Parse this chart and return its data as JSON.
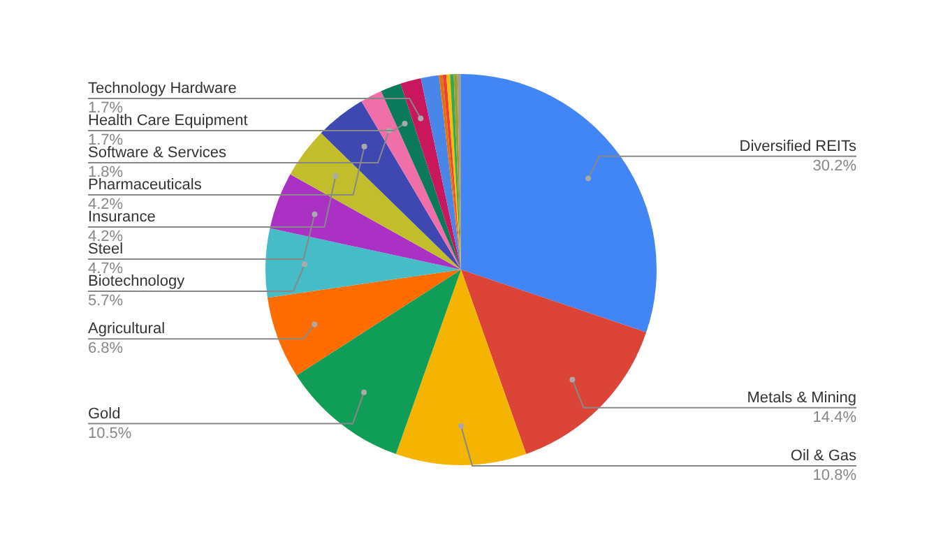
{
  "chart_data": {
    "type": "pie",
    "categories": [
      "Diversified REITs",
      "Metals & Mining",
      "Oil & Gas",
      "Gold",
      "Agricultural",
      "Biotechnology",
      "Steel",
      "Insurance",
      "Pharmaceuticals",
      "Software & Services",
      "Health Care Equipment",
      "Technology Hardware",
      null,
      null,
      null,
      null,
      null,
      null,
      null
    ],
    "values": [
      30.2,
      14.4,
      10.8,
      10.5,
      6.8,
      5.7,
      4.7,
      4.2,
      4.2,
      1.8,
      1.7,
      1.7,
      1.5,
      0.3,
      0.3,
      0.3,
      0.3,
      0.3,
      0.3
    ],
    "value_labels": [
      "30.2%",
      "14.4%",
      "10.8%",
      "10.5%",
      "6.8%",
      "5.7%",
      "4.7%",
      "4.2%",
      "4.2%",
      "1.8%",
      "1.7%",
      "1.7%",
      null,
      null,
      null,
      null,
      null,
      null,
      null
    ],
    "colors": [
      "#4285f4",
      "#db4437",
      "#f4b400",
      "#0f9d58",
      "#ff6d01",
      "#46bdc6",
      "#ab30c4",
      "#c2bd2a",
      "#3f48b0",
      "#f06fa8",
      "#0b7a5a",
      "#c8175d",
      "#4a86e8",
      "#e8710a",
      "#ea4335",
      "#fbbc04",
      "#34a853",
      "#9aa02b",
      "#9e9e9e"
    ],
    "legend": false
  }
}
